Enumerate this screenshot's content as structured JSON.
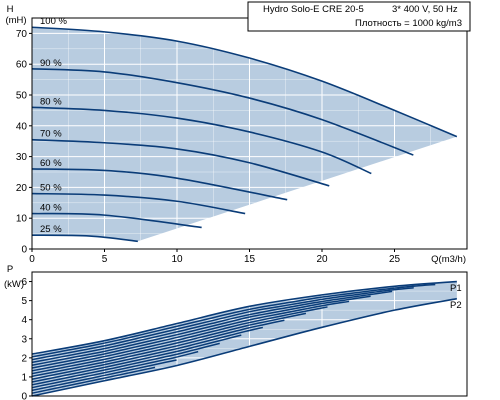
{
  "chart_data": [
    {
      "type": "line",
      "title_lines": [
        "Hydro Solo-E CRE 20-5",
        "3* 400 V, 50 Hz",
        "Плотность = 1000 kg/m3"
      ],
      "ylabel_top": "H",
      "ylabel_unit": "(mH)",
      "xlabel": "Q(m3/h)",
      "xlim": [
        0,
        30
      ],
      "ylim": [
        0,
        75
      ],
      "xticks": [
        "0",
        "5",
        "10",
        "15",
        "20",
        "25"
      ],
      "xtick_values": [
        0,
        5,
        10,
        15,
        20,
        25
      ],
      "yticks": [
        "0",
        "10",
        "20",
        "30",
        "40",
        "50",
        "60",
        "70"
      ],
      "ytick_values": [
        0,
        10,
        20,
        30,
        40,
        50,
        60,
        70
      ],
      "grid": true,
      "fill_color": "#b8cce0",
      "line_color": "#0a3c78",
      "operating_limit": [
        [
          7.3,
          2.5
        ],
        [
          29.3,
          36.5
        ]
      ],
      "series": [
        {
          "name": "100 %",
          "values": [
            [
              0,
              72
            ],
            [
              5,
              70.5
            ],
            [
              10,
              67.5
            ],
            [
              15,
              62
            ],
            [
              20,
              54.5
            ],
            [
              25,
              45
            ],
            [
              29.3,
              36.5
            ]
          ]
        },
        {
          "name": "90 %",
          "values": [
            [
              0,
              58.5
            ],
            [
              5,
              57.5
            ],
            [
              10,
              54
            ],
            [
              15,
              49
            ],
            [
              20,
              42
            ],
            [
              26.3,
              30.5
            ]
          ]
        },
        {
          "name": "80 %",
          "values": [
            [
              0,
              46
            ],
            [
              5,
              45
            ],
            [
              10,
              42.5
            ],
            [
              15,
              38
            ],
            [
              20,
              31.5
            ],
            [
              23.4,
              24.5
            ]
          ]
        },
        {
          "name": "70 %",
          "values": [
            [
              0,
              35.5
            ],
            [
              5,
              34.5
            ],
            [
              10,
              32.5
            ],
            [
              15,
              28
            ],
            [
              20.5,
              20.5
            ]
          ]
        },
        {
          "name": "60 %",
          "values": [
            [
              0,
              26
            ],
            [
              5,
              25.5
            ],
            [
              10,
              23
            ],
            [
              17.6,
              16
            ]
          ]
        },
        {
          "name": "50 %",
          "values": [
            [
              0,
              18
            ],
            [
              5,
              17.5
            ],
            [
              10,
              15.5
            ],
            [
              14.7,
              11.5
            ]
          ]
        },
        {
          "name": "40 %",
          "values": [
            [
              0,
              11.5
            ],
            [
              5,
              11
            ],
            [
              11.7,
              7
            ]
          ]
        },
        {
          "name": "25 %",
          "values": [
            [
              0,
              4.5
            ],
            [
              4,
              4.2
            ],
            [
              7.3,
              2.5
            ]
          ]
        }
      ]
    },
    {
      "type": "area",
      "ylabel_top": "P",
      "ylabel_unit": "(kW)",
      "xlim": [
        0,
        30
      ],
      "ylim": [
        0,
        6.5
      ],
      "yticks": [
        "0",
        "1",
        "2",
        "3",
        "4",
        "5",
        "6"
      ],
      "ytick_values": [
        0,
        1,
        2,
        3,
        4,
        5,
        6
      ],
      "grid": true,
      "fill_color": "#b8cce0",
      "line_color": "#0a3c78",
      "band_upper": [
        [
          0,
          2.2
        ],
        [
          5,
          2.9
        ],
        [
          10,
          3.8
        ],
        [
          15,
          4.7
        ],
        [
          20,
          5.3
        ],
        [
          25,
          5.75
        ],
        [
          29.3,
          6.0
        ]
      ],
      "band_lower": [
        [
          0,
          0
        ],
        [
          5,
          0.8
        ],
        [
          10,
          1.6
        ],
        [
          15,
          2.6
        ],
        [
          20,
          3.6
        ],
        [
          25,
          4.5
        ],
        [
          29.3,
          5.1
        ]
      ],
      "band_labels": [
        "P1",
        "P2"
      ],
      "inner_curves": 14
    }
  ]
}
